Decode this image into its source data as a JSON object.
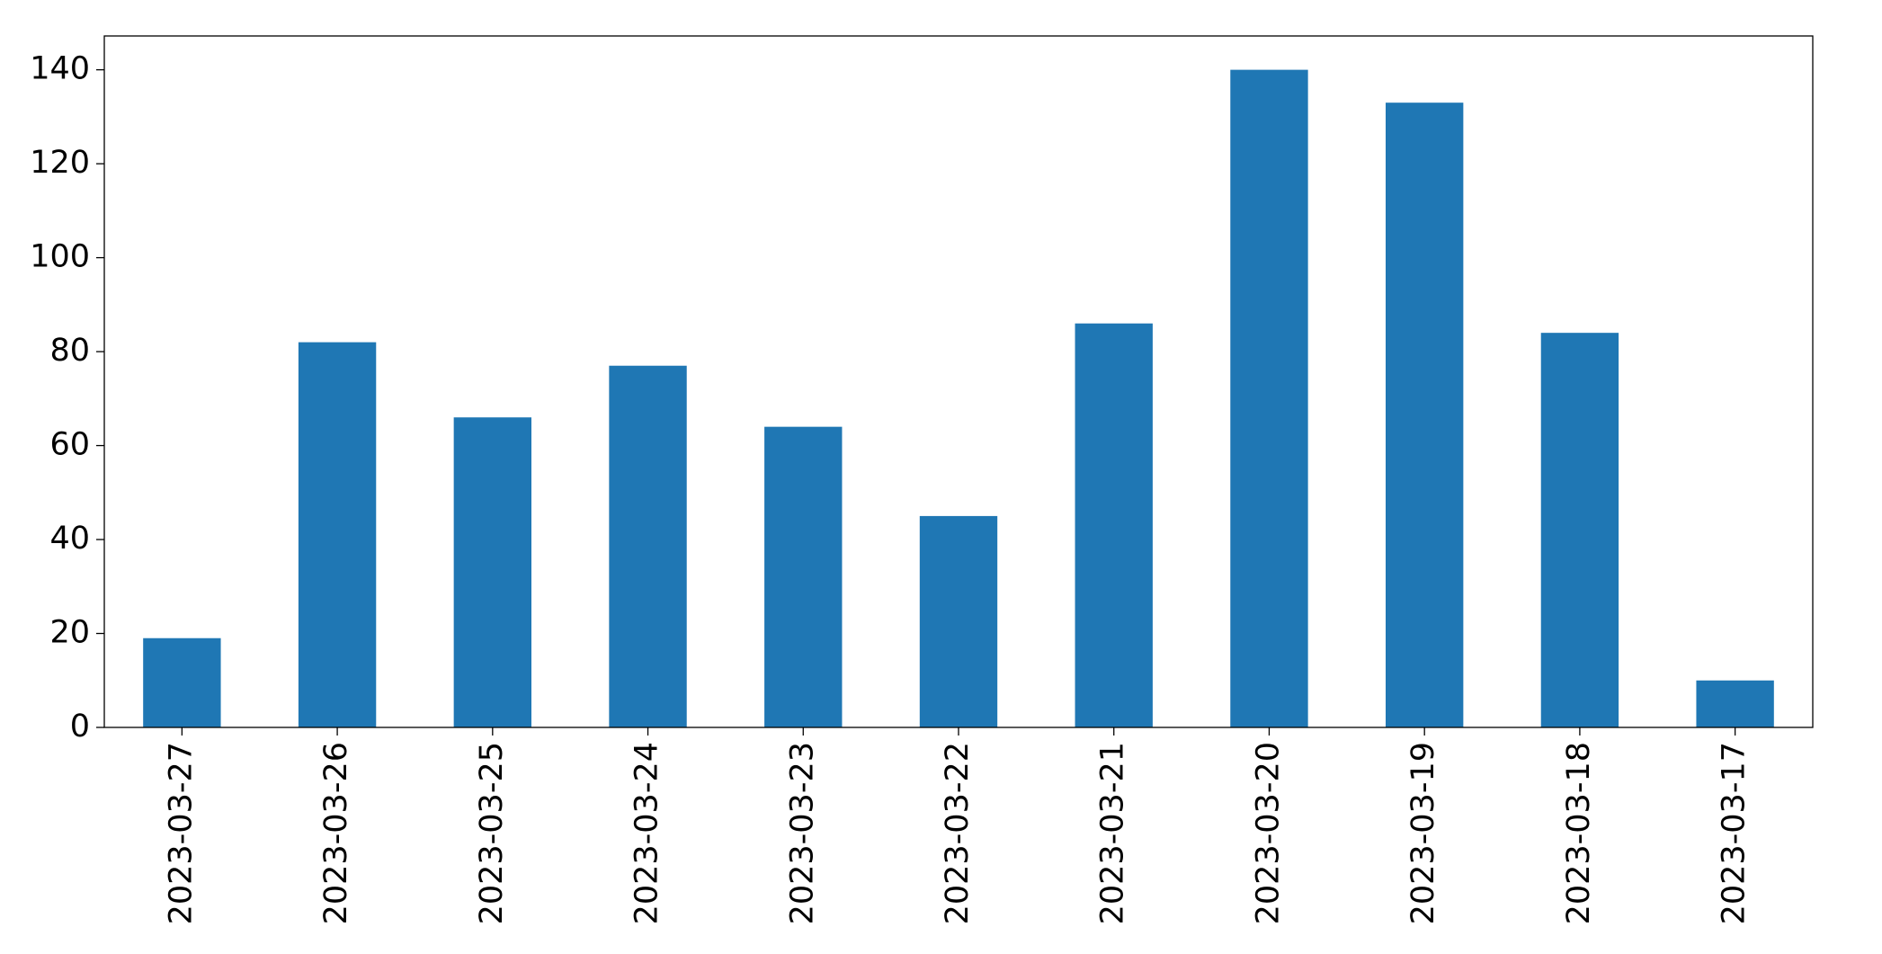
{
  "chart_data": {
    "type": "bar",
    "categories": [
      "2023-03-27",
      "2023-03-26",
      "2023-03-25",
      "2023-03-24",
      "2023-03-23",
      "2023-03-22",
      "2023-03-21",
      "2023-03-20",
      "2023-03-19",
      "2023-03-18",
      "2023-03-17"
    ],
    "values": [
      19,
      82,
      66,
      77,
      64,
      45,
      86,
      140,
      133,
      84,
      10
    ],
    "color": "#1f77b4",
    "ylim": [
      0,
      147.2
    ],
    "yticks": [
      0,
      20,
      40,
      60,
      80,
      100,
      120,
      140
    ],
    "grid": false
  }
}
